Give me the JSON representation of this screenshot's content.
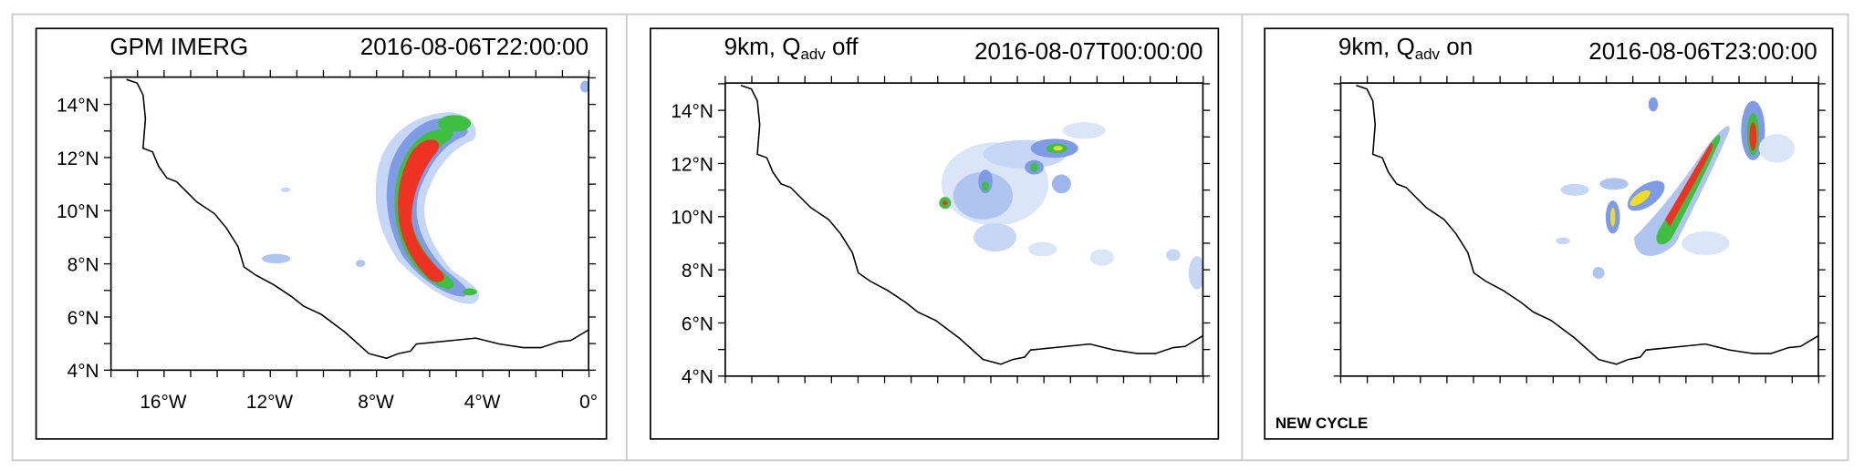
{
  "panels": [
    {
      "title": [
        "GPM IMERG"
      ],
      "time": "2016-08-06T22:00:00",
      "ylabels": [
        "14°N",
        "12°N",
        "10°N",
        "8°N",
        "6°N",
        "4°N"
      ],
      "xlabels": [
        "16°W",
        "12°W",
        "8°W",
        "4°W",
        "0°"
      ]
    },
    {
      "title": [
        "9km, Q",
        "adv",
        " off"
      ],
      "time": "2016-08-07T00:00:00",
      "ylabels": [
        "14°N",
        "12°N",
        "10°N",
        "8°N",
        "6°N",
        "4°N"
      ]
    },
    {
      "title": [
        "9km, Q",
        "adv",
        " on"
      ],
      "time": "2016-08-06T23:00:00",
      "note": "NEW CYCLE"
    }
  ]
}
